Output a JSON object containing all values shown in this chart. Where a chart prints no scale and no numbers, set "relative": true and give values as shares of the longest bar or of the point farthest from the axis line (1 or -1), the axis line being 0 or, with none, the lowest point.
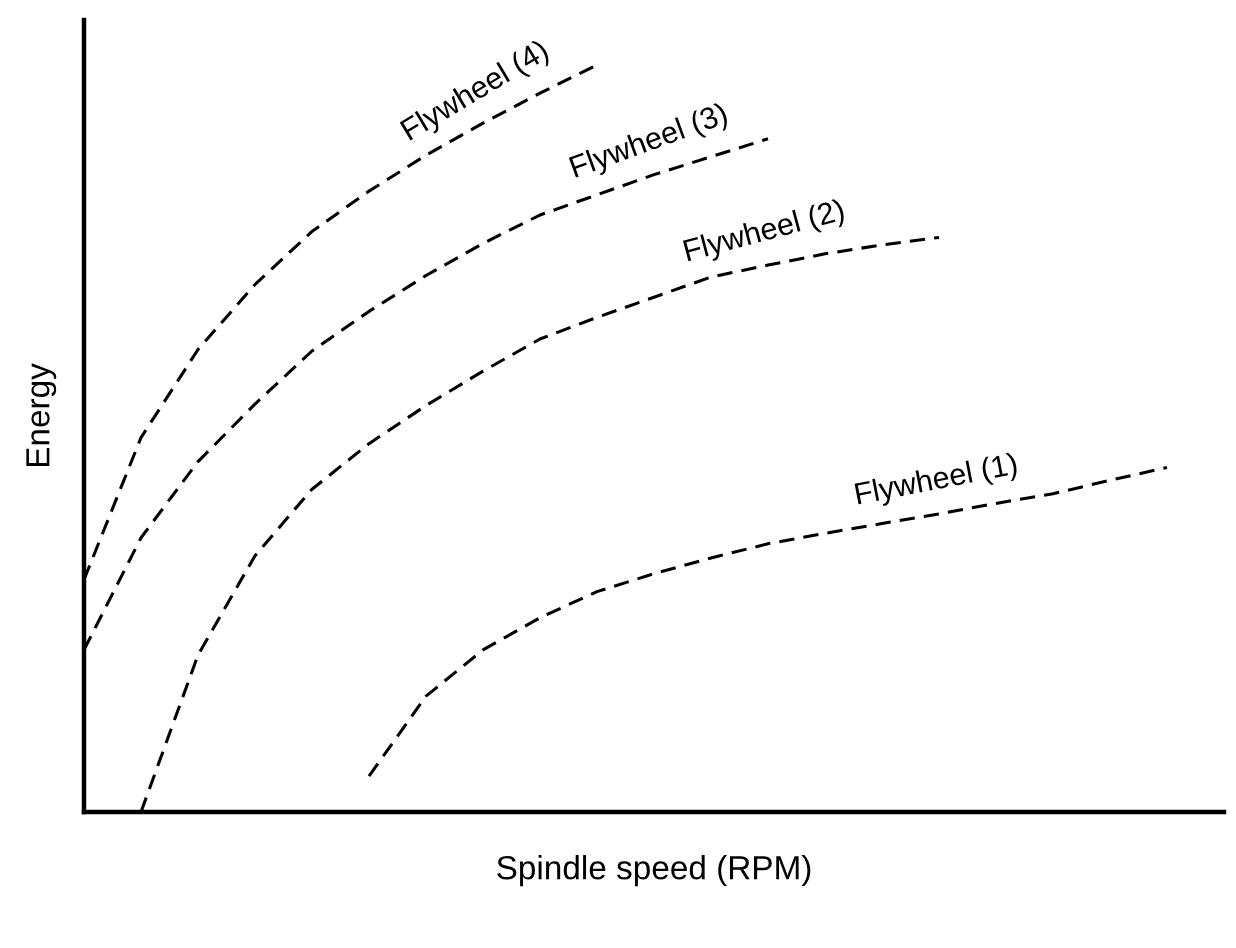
{
  "chart_data": {
    "type": "line",
    "relative": true,
    "xlabel": "Spindle speed (RPM)",
    "ylabel": "Energy",
    "marker": "none",
    "line_style": "dashed",
    "categories": [
      null,
      null,
      null,
      null,
      null,
      null,
      null,
      null,
      null,
      null,
      null,
      null,
      null,
      null,
      null,
      null,
      null,
      null,
      null,
      null
    ],
    "series": [
      {
        "color": "#000000",
        "values": [
          0.311,
          0.501,
          0.619,
          0.706,
          0.777,
          0.831,
          0.879,
          0.922,
          0.962,
          1.0,
          null,
          null,
          null,
          null,
          null,
          null,
          null,
          null,
          null,
          null
        ]
      },
      {
        "color": "#000000",
        "values": [
          0.217,
          0.367,
          0.469,
          0.546,
          0.617,
          0.67,
          0.718,
          0.761,
          0.799,
          0.826,
          0.853,
          0.877,
          0.901,
          null,
          null,
          null,
          null,
          null,
          null,
          null
        ]
      },
      {
        "color": "#000000",
        "values": [
          null,
          0,
          0.21,
          0.343,
          0.432,
          0.493,
          0.544,
          0.59,
          0.633,
          0.662,
          0.689,
          0.716,
          0.732,
          0.747,
          0.759,
          0.769,
          null,
          null,
          null,
          null
        ]
      },
      {
        "color": "#000000",
        "values": [
          null,
          null,
          null,
          null,
          null,
          0.048,
          0.155,
          0.217,
          0.26,
          0.295,
          0.319,
          0.34,
          0.359,
          0.373,
          0.386,
          0.399,
          0.413,
          0.426,
          0.444,
          0.461
        ]
      }
    ],
    "annotations": [
      "Flywheel (4)",
      "Flywheel (3)",
      "Flywheel (2)",
      "Flywheel (1)"
    ]
  }
}
